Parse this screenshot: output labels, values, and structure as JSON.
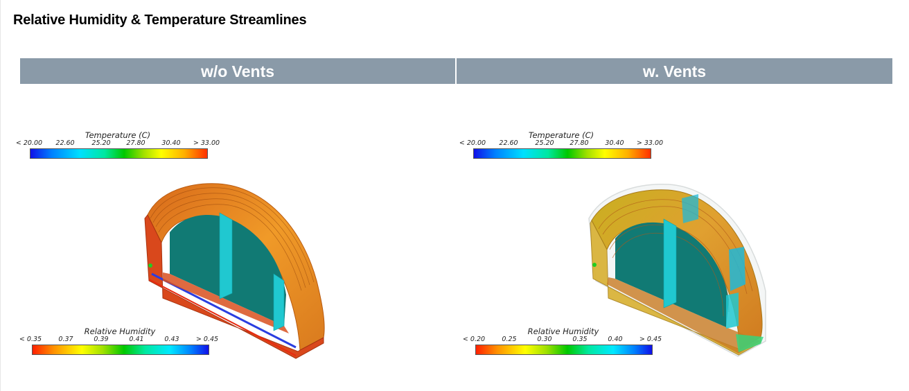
{
  "slide": {
    "title": "Relative Humidity & Temperature Streamlines"
  },
  "panels": [
    {
      "header": "w/o Vents",
      "temperature_legend": {
        "title": "Temperature (C)",
        "ticks": [
          "< 20.00",
          "22.60",
          "25.20",
          "27.80",
          "30.40",
          "> 33.00"
        ]
      },
      "humidity_legend": {
        "title": "Relative Humidity",
        "ticks": [
          "< 0.35",
          "0.37",
          "0.39",
          "0.41",
          "0.43",
          "> 0.45"
        ]
      }
    },
    {
      "header": "w. Vents",
      "temperature_legend": {
        "title": "Temperature (C)",
        "ticks": [
          "< 20.00",
          "22.60",
          "25.20",
          "27.80",
          "30.40",
          "> 33.00"
        ]
      },
      "humidity_legend": {
        "title": "Relative Humidity",
        "ticks": [
          "< 0.20",
          "0.25",
          "0.30",
          "0.35",
          "0.40",
          "> 0.45"
        ]
      }
    }
  ]
}
